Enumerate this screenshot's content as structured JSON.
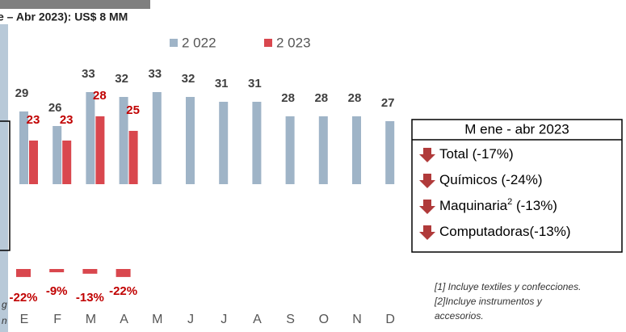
{
  "chart_data": {
    "type": "bar",
    "title": "e – Abr 2023):  US$ 8 MM",
    "categories": [
      "E",
      "F",
      "M",
      "A",
      "M",
      "J",
      "J",
      "A",
      "S",
      "O",
      "N",
      "D"
    ],
    "series": [
      {
        "name": "2 022",
        "color": "#9fb4c7",
        "label_color": "#404040",
        "values": [
          29,
          26,
          33,
          32,
          33,
          32,
          31,
          31,
          28,
          28,
          28,
          27
        ]
      },
      {
        "name": "2 023",
        "color": "#d9474e",
        "label_color": "#c00000",
        "values": [
          23,
          23,
          28,
          25,
          null,
          null,
          null,
          null,
          null,
          null,
          null,
          null
        ]
      }
    ],
    "ylim": [
      14,
      40
    ],
    "changes": {
      "color": "#d9474e",
      "values": [
        -22,
        -9,
        -13,
        -22
      ],
      "value_labels": [
        "-22%",
        "-9%",
        "-13%",
        "-22%"
      ]
    },
    "summary": {
      "title": "M ene - abr 2023",
      "items": [
        {
          "text": "Total (-17%)"
        },
        {
          "text": "Químicos (-24%)"
        },
        {
          "text": "Maquinaria",
          "sup": "2",
          "suffix": " (-13%)"
        },
        {
          "text": "Computadoras(-13%)"
        }
      ]
    },
    "footnotes": [
      "[1] Incluye textiles y confecciones.",
      "[2]Incluye instrumentos y",
      "accesorios."
    ],
    "left_fragments": [
      "g",
      "n"
    ]
  }
}
